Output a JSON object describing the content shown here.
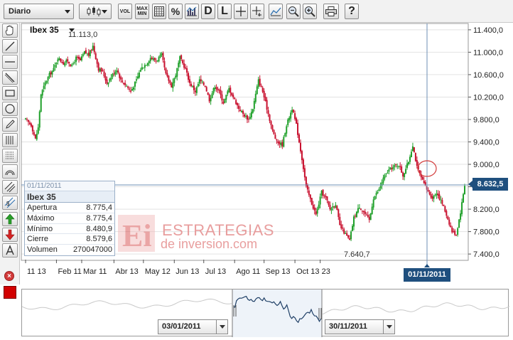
{
  "toolbar": {
    "period_select": "Diario",
    "volume_button": "VOL",
    "maxmin_button_top": "MAX",
    "maxmin_button_bottom": "MIN",
    "percent_button": "%",
    "daily_button": "D",
    "line_button": "L",
    "help_button": "?"
  },
  "chart": {
    "instrument": "Ibex 35",
    "high_annotation": "11.113,0",
    "low_annotation": "7.640,7",
    "current_price": "8.632,5",
    "crosshair_date": "01/11/2011",
    "price_axis": [
      "11.400,0",
      "11.000,0",
      "10.600,0",
      "10.200,0",
      "9.800,0",
      "9.400,0",
      "9.000,0",
      "8.600,0",
      "8.200,0",
      "7.800,0",
      "7.400,0"
    ],
    "date_axis": [
      "11 13",
      "Feb 11",
      "Mar 11",
      "Abr 13",
      "May 12",
      "Jun 13",
      "Jul 13",
      "Ago 11",
      "Sep 13",
      "Oct 13",
      "23"
    ],
    "up_color": "#1fa02a",
    "down_color": "#c8102e",
    "crosshair_color": "#6e8fb5"
  },
  "chart_data": {
    "type": "candlestick",
    "title": "Ibex 35",
    "period": "Diario",
    "ylim": [
      7300,
      11500
    ],
    "x_ticks": [
      "11 13",
      "Feb 11",
      "Mar 11",
      "Abr 13",
      "May 12",
      "Jun 13",
      "Jul 13",
      "Ago 11",
      "Sep 13",
      "Oct 13",
      "23"
    ],
    "annotations": [
      {
        "label": "11.113,0",
        "value": 11113.0
      },
      {
        "label": "7.640,7",
        "value": 7640.7
      }
    ],
    "last_value": 8632.5,
    "close_path": [
      [
        0,
        9800
      ],
      [
        4,
        9700
      ],
      [
        7,
        9450
      ],
      [
        9,
        9650
      ],
      [
        11,
        10250
      ],
      [
        14,
        10450
      ],
      [
        17,
        10600
      ],
      [
        20,
        10700
      ],
      [
        23,
        10900
      ],
      [
        27,
        10800
      ],
      [
        30,
        10850
      ],
      [
        33,
        10750
      ],
      [
        36,
        10900
      ],
      [
        39,
        10850
      ],
      [
        42,
        11000
      ],
      [
        45,
        10950
      ],
      [
        48,
        11113
      ],
      [
        52,
        10700
      ],
      [
        55,
        10650
      ],
      [
        58,
        10450
      ],
      [
        62,
        10600
      ],
      [
        65,
        10700
      ],
      [
        68,
        10500
      ],
      [
        72,
        10400
      ],
      [
        75,
        10300
      ],
      [
        79,
        10500
      ],
      [
        82,
        10700
      ],
      [
        86,
        10800
      ],
      [
        89,
        10900
      ],
      [
        93,
        10850
      ],
      [
        97,
        10950
      ],
      [
        100,
        10600
      ],
      [
        104,
        10400
      ],
      [
        107,
        10600
      ],
      [
        110,
        10900
      ],
      [
        114,
        10700
      ],
      [
        117,
        10450
      ],
      [
        121,
        10300
      ],
      [
        124,
        10500
      ],
      [
        128,
        10400
      ],
      [
        131,
        10150
      ],
      [
        135,
        10400
      ],
      [
        138,
        10300
      ],
      [
        141,
        10100
      ],
      [
        145,
        10350
      ],
      [
        148,
        10200
      ],
      [
        152,
        10000
      ],
      [
        155,
        9900
      ],
      [
        159,
        9800
      ],
      [
        162,
        10000
      ],
      [
        166,
        10500
      ],
      [
        169,
        10300
      ],
      [
        172,
        10000
      ],
      [
        176,
        9600
      ],
      [
        179,
        9400
      ],
      [
        183,
        9350
      ],
      [
        186,
        9700
      ],
      [
        190,
        10000
      ],
      [
        193,
        9700
      ],
      [
        197,
        9100
      ],
      [
        200,
        8600
      ],
      [
        204,
        8300
      ],
      [
        207,
        8100
      ],
      [
        211,
        8500
      ],
      [
        214,
        8400
      ],
      [
        217,
        8200
      ],
      [
        221,
        8300
      ],
      [
        224,
        7900
      ],
      [
        228,
        7750
      ],
      [
        231,
        7640.7
      ],
      [
        234,
        8050
      ],
      [
        238,
        8250
      ],
      [
        241,
        8150
      ],
      [
        245,
        8000
      ],
      [
        248,
        8400
      ],
      [
        252,
        8550
      ],
      [
        255,
        8750
      ],
      [
        259,
        8900
      ],
      [
        262,
        8950
      ],
      [
        266,
        9000
      ],
      [
        269,
        8800
      ],
      [
        273,
        9050
      ],
      [
        276,
        9350
      ],
      [
        279,
        8950
      ],
      [
        283,
        8700
      ],
      [
        286,
        8550
      ],
      [
        290,
        8400
      ],
      [
        293,
        8500
      ],
      [
        297,
        8300
      ],
      [
        300,
        8100
      ],
      [
        304,
        7800
      ],
      [
        307,
        7750
      ],
      [
        310,
        8150
      ],
      [
        313,
        8632.5
      ]
    ],
    "info_box": {
      "date": "01/11/2011",
      "open": 8775.4,
      "high": 8775.4,
      "low": 8480.9,
      "close": 8579.6,
      "volume": 270047000
    }
  },
  "infobox": {
    "date": "01/11/2011",
    "name": "Ibex 35",
    "rows": [
      {
        "label": "Apertura",
        "value": "8.775,4"
      },
      {
        "label": "Máximo",
        "value": "8.775,4"
      },
      {
        "label": "Mínimo",
        "value": "8.480,9"
      },
      {
        "label": "Cierre",
        "value": "8.579,6"
      },
      {
        "label": "Volumen",
        "value": "270047000"
      }
    ]
  },
  "watermark": {
    "logo": "Ei",
    "line1": "ESTRATEGIAS",
    "line2": "de inversion.com"
  },
  "navigator": {
    "start_date": "03/01/2011",
    "end_date": "30/11/2011"
  }
}
